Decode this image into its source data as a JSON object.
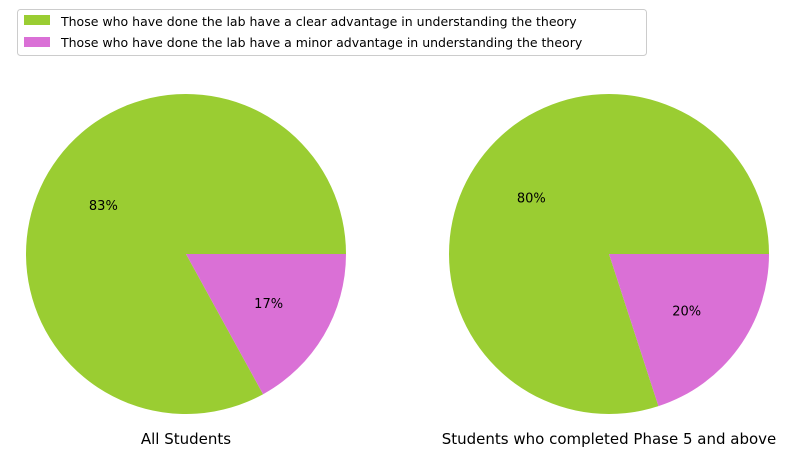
{
  "colors": {
    "clear_advantage": "#9acd32",
    "minor_advantage": "#da70d6"
  },
  "legend": {
    "placement": "top-left",
    "entries": [
      "Those who have done the lab have a clear advantage in understanding the theory",
      "Those who have done the lab have a minor advantage in understanding the theory"
    ]
  },
  "chart_data": [
    {
      "type": "pie",
      "title": "All Students",
      "labels": [
        "Those who have done the lab have a clear advantage in understanding the theory",
        "Those who have done the lab have a minor advantage in understanding the theory"
      ],
      "values": [
        83,
        17
      ],
      "value_labels": [
        "83%",
        "17%"
      ]
    },
    {
      "type": "pie",
      "title": "Students who completed Phase 5 and above",
      "labels": [
        "Those who have done the lab have a clear advantage in understanding the theory",
        "Those who have done the lab have a minor advantage in understanding the theory"
      ],
      "values": [
        80,
        20
      ],
      "value_labels": [
        "80%",
        "20%"
      ]
    }
  ]
}
